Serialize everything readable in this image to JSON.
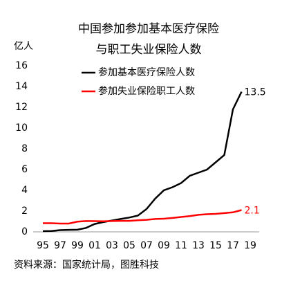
{
  "chart_data": {
    "type": "line",
    "title": [
      "中国参加参加基本医疗保险",
      "与职工失业保险人数"
    ],
    "y_label": "亿人",
    "source": "资料来源：国家统计局，图胜科技",
    "categories": [
      "95",
      null,
      "97",
      null,
      "99",
      null,
      "01",
      null,
      "03",
      null,
      "05",
      null,
      "07",
      null,
      "09",
      null,
      "11",
      null,
      "13",
      null,
      "15",
      null,
      "17",
      null,
      "19"
    ],
    "series": [
      {
        "name": "参加基本医疗保险人数",
        "color": "#000000",
        "values": [
          0.07,
          0.08,
          0.17,
          0.19,
          0.21,
          0.38,
          0.76,
          0.94,
          1.09,
          1.24,
          1.38,
          1.57,
          2.2,
          3.2,
          4.0,
          4.3,
          4.7,
          5.4,
          5.7,
          6.0,
          6.7,
          7.4,
          11.8,
          13.5,
          null
        ]
      },
      {
        "name": "参加失业保险职工人数",
        "color": "#ff0000",
        "values": [
          0.83,
          0.83,
          0.8,
          0.8,
          0.98,
          1.04,
          1.03,
          1.02,
          1.04,
          1.06,
          1.06,
          1.12,
          1.16,
          1.24,
          1.27,
          1.34,
          1.43,
          1.52,
          1.64,
          1.7,
          1.73,
          1.81,
          1.88,
          2.1,
          null
        ]
      }
    ],
    "label_last": true,
    "ylim": [
      0,
      16
    ],
    "yticks": [
      0,
      2,
      4,
      6,
      8,
      10,
      12,
      14,
      16
    ],
    "grid": false
  }
}
